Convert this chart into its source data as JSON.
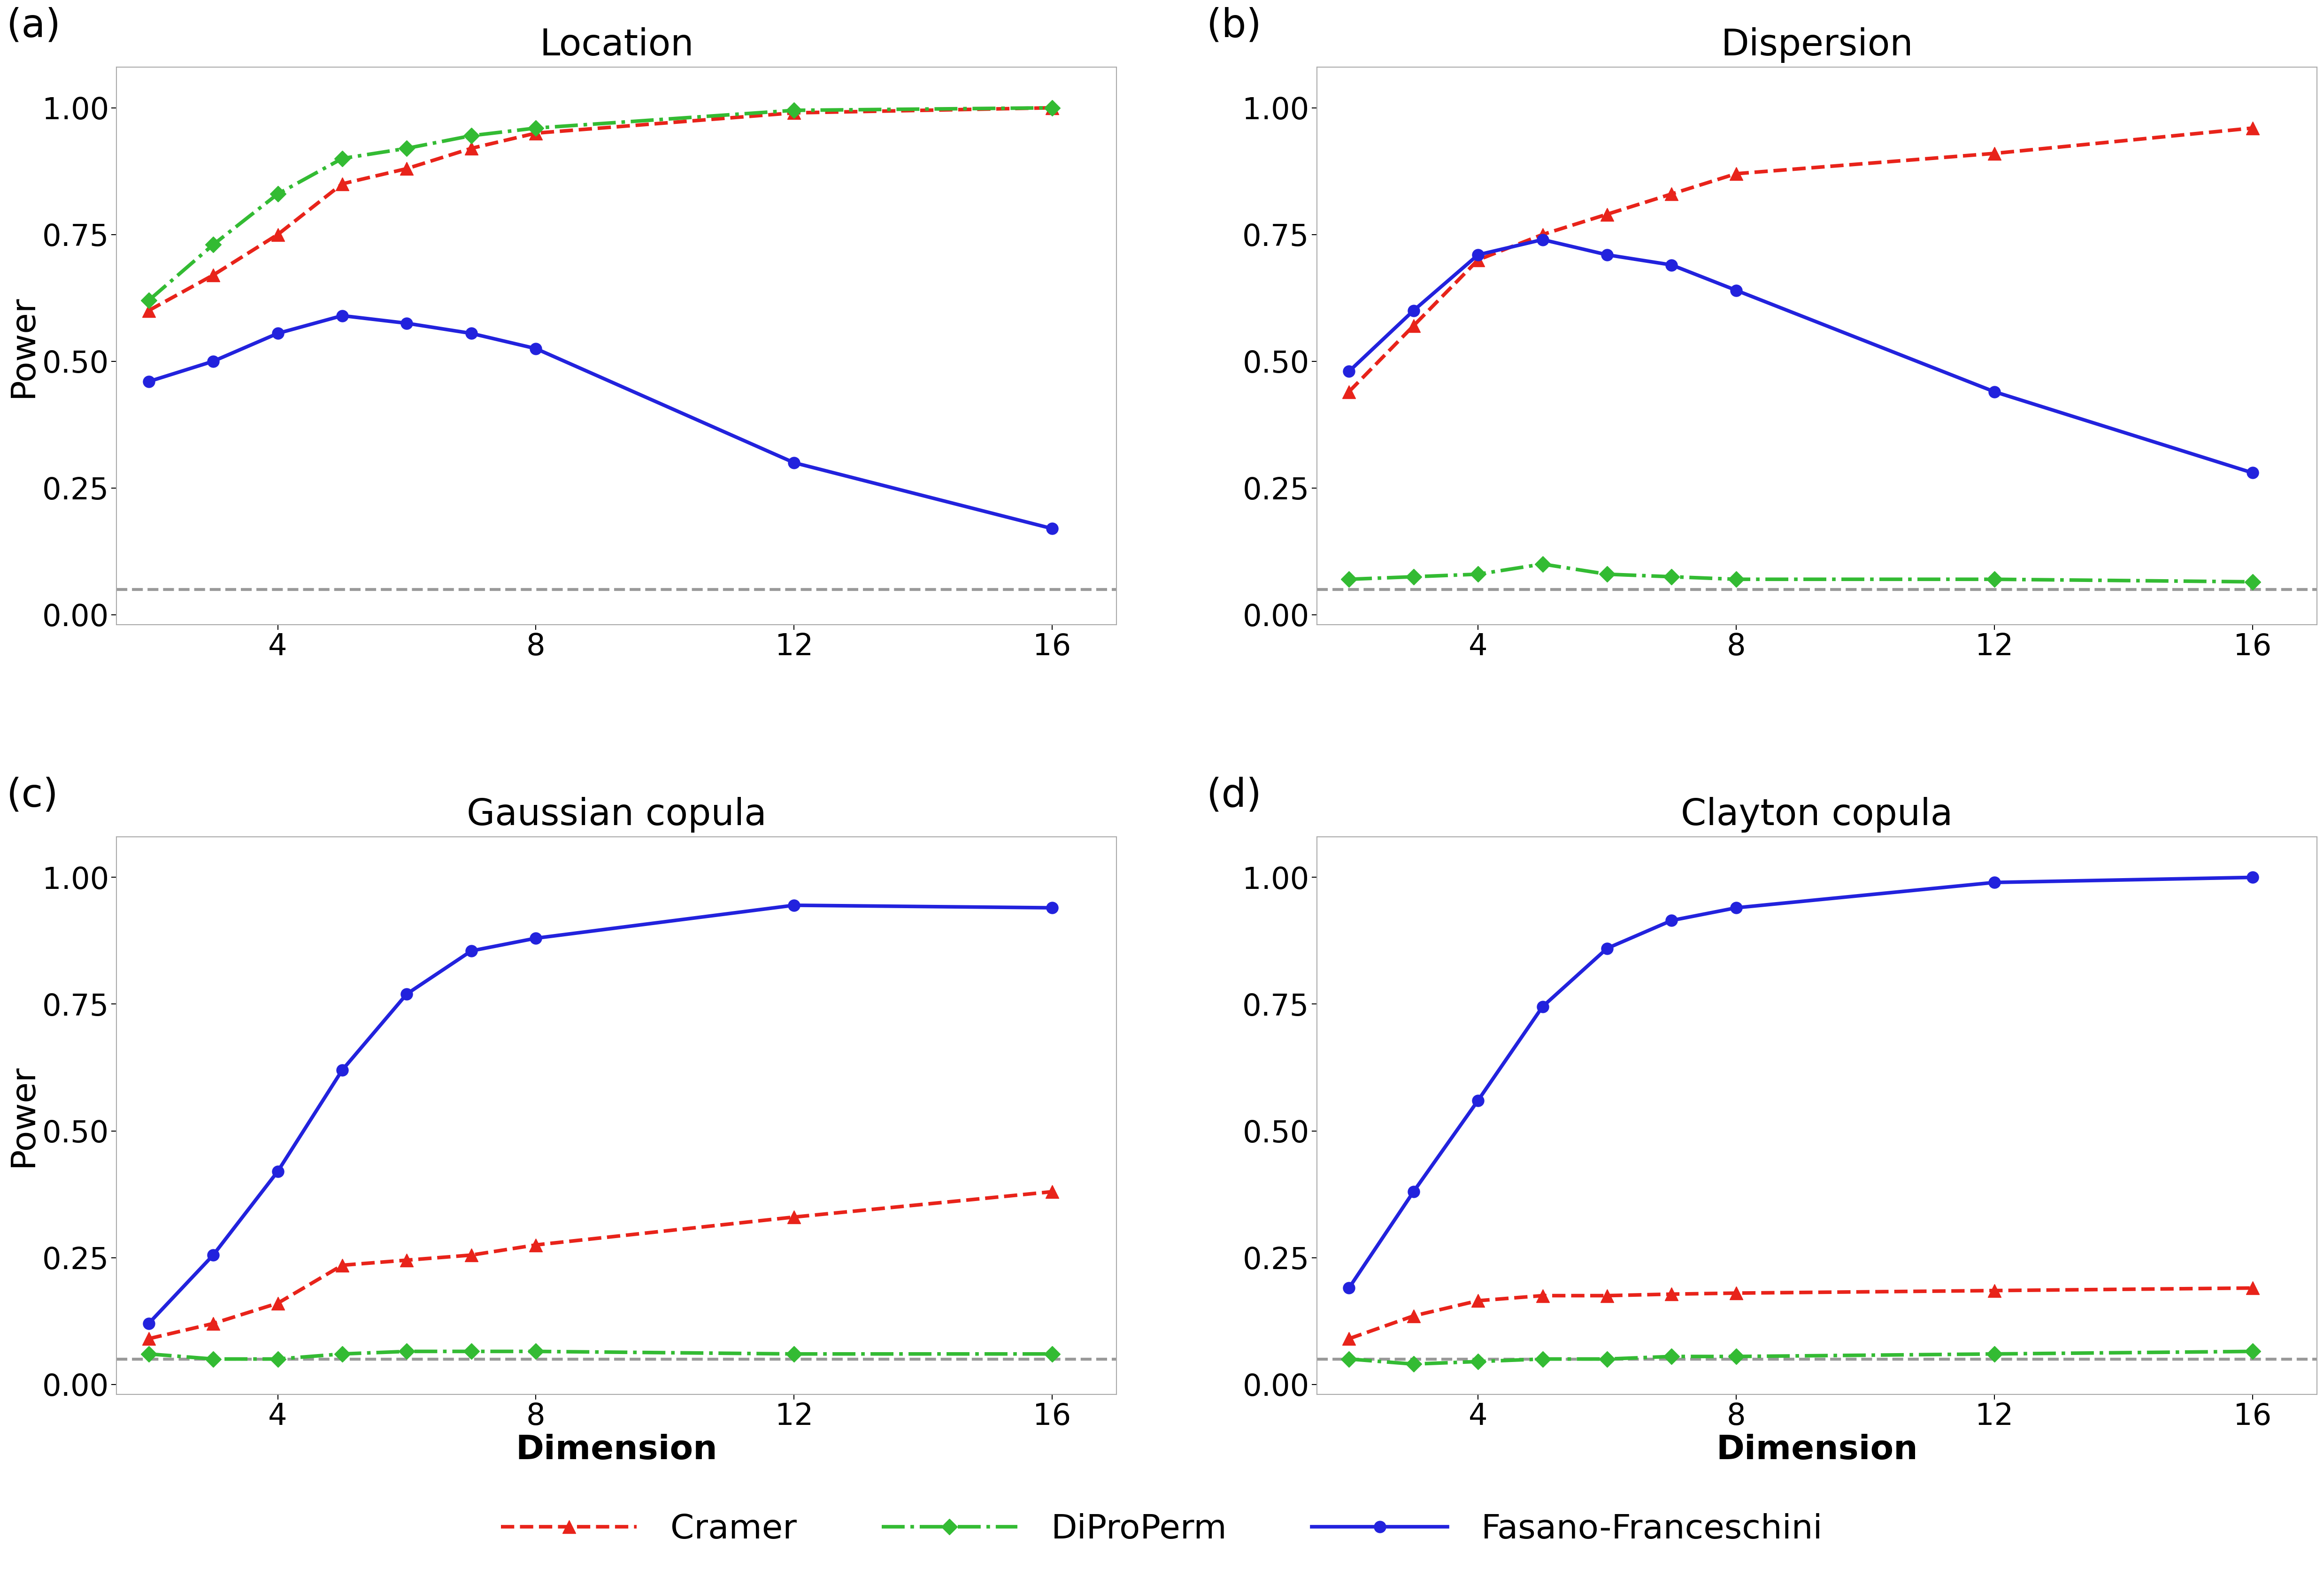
{
  "x": [
    2,
    3,
    4,
    5,
    6,
    7,
    8,
    12,
    16
  ],
  "location": {
    "cramer": [
      0.6,
      0.67,
      0.75,
      0.85,
      0.88,
      0.92,
      0.95,
      0.99,
      1.0
    ],
    "diproperm": [
      0.62,
      0.73,
      0.83,
      0.9,
      0.92,
      0.945,
      0.96,
      0.995,
      1.0
    ],
    "ff": [
      0.46,
      0.5,
      0.555,
      0.59,
      0.575,
      0.555,
      0.525,
      0.3,
      0.17
    ]
  },
  "dispersion": {
    "cramer": [
      0.44,
      0.57,
      0.7,
      0.75,
      0.79,
      0.83,
      0.87,
      0.91,
      0.96
    ],
    "diproperm": [
      0.07,
      0.075,
      0.08,
      0.1,
      0.08,
      0.075,
      0.07,
      0.07,
      0.065
    ],
    "ff": [
      0.48,
      0.6,
      0.71,
      0.74,
      0.71,
      0.69,
      0.64,
      0.44,
      0.28
    ]
  },
  "gaussian_copula": {
    "cramer": [
      0.09,
      0.12,
      0.16,
      0.235,
      0.245,
      0.255,
      0.275,
      0.33,
      0.38
    ],
    "diproperm": [
      0.06,
      0.05,
      0.05,
      0.06,
      0.065,
      0.065,
      0.065,
      0.06,
      0.06
    ],
    "ff": [
      0.12,
      0.255,
      0.42,
      0.62,
      0.77,
      0.855,
      0.88,
      0.945,
      0.94
    ]
  },
  "clayton_copula": {
    "cramer": [
      0.09,
      0.135,
      0.165,
      0.175,
      0.175,
      0.178,
      0.18,
      0.185,
      0.19
    ],
    "diproperm": [
      0.05,
      0.04,
      0.045,
      0.05,
      0.05,
      0.055,
      0.055,
      0.06,
      0.065
    ],
    "ff": [
      0.19,
      0.38,
      0.56,
      0.745,
      0.86,
      0.915,
      0.94,
      0.99,
      1.0
    ]
  },
  "alpha_line": 0.05,
  "titles": [
    "Location",
    "Dispersion",
    "Gaussian copula",
    "Clayton copula"
  ],
  "panel_labels": [
    "(a)",
    "(b)",
    "(c)",
    "(d)"
  ],
  "cramer_color": "#E8231A",
  "diproperm_color": "#33BB33",
  "ff_color": "#2222DD",
  "alpha_color": "#999999",
  "ylabel": "Power",
  "xlabel": "Dimension",
  "legend_cramer": "Cramer",
  "legend_diproperm": "DiProPerm",
  "legend_ff": "Fasano-Franceschini",
  "ylim": [
    -0.02,
    1.08
  ],
  "yticks": [
    0.0,
    0.25,
    0.5,
    0.75,
    1.0
  ],
  "xticks": [
    4,
    8,
    12,
    16
  ],
  "xlim": [
    1.5,
    17.0
  ],
  "title_fontsize": 56,
  "label_fontsize": 52,
  "tick_fontsize": 46,
  "panel_label_fontsize": 60,
  "legend_fontsize": 52,
  "linewidth": 5.5,
  "markersize": 20,
  "alpha_linewidth": 4.5
}
